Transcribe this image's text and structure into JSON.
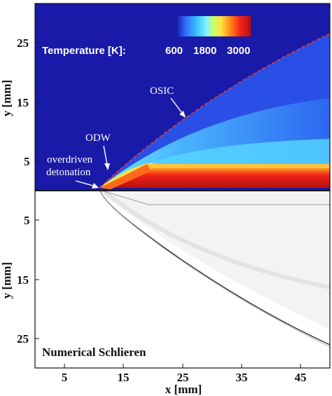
{
  "top_panel": {
    "colorbar": {
      "title": "Temperature [K]:",
      "tick_labels": [
        "600",
        "1800",
        "3000"
      ],
      "colormap": [
        "#1a1aa8",
        "#2f6cff",
        "#39c6ff",
        "#7ef0ff",
        "#c9ff6a",
        "#ffe23a",
        "#ff8a1a",
        "#f2231a",
        "#b3100e"
      ]
    },
    "annotations": {
      "osic": "OSIC",
      "odw": "ODW",
      "overdriven_line1": "overdriven",
      "overdriven_line2": "detonation"
    },
    "y_ticks": [
      "25",
      "15",
      "5"
    ],
    "y_axis_label": "y [mm]",
    "background_color": "#1a1aa8",
    "osic_line_color": "#e63a2a"
  },
  "bottom_panel": {
    "title": "Numerical Schlieren",
    "y_ticks": [
      "5",
      "15",
      "25"
    ],
    "y_axis_label": "y [mm]",
    "x_ticks": [
      "5",
      "15",
      "25",
      "35",
      "45"
    ],
    "x_axis_label": "x [mm]"
  }
}
